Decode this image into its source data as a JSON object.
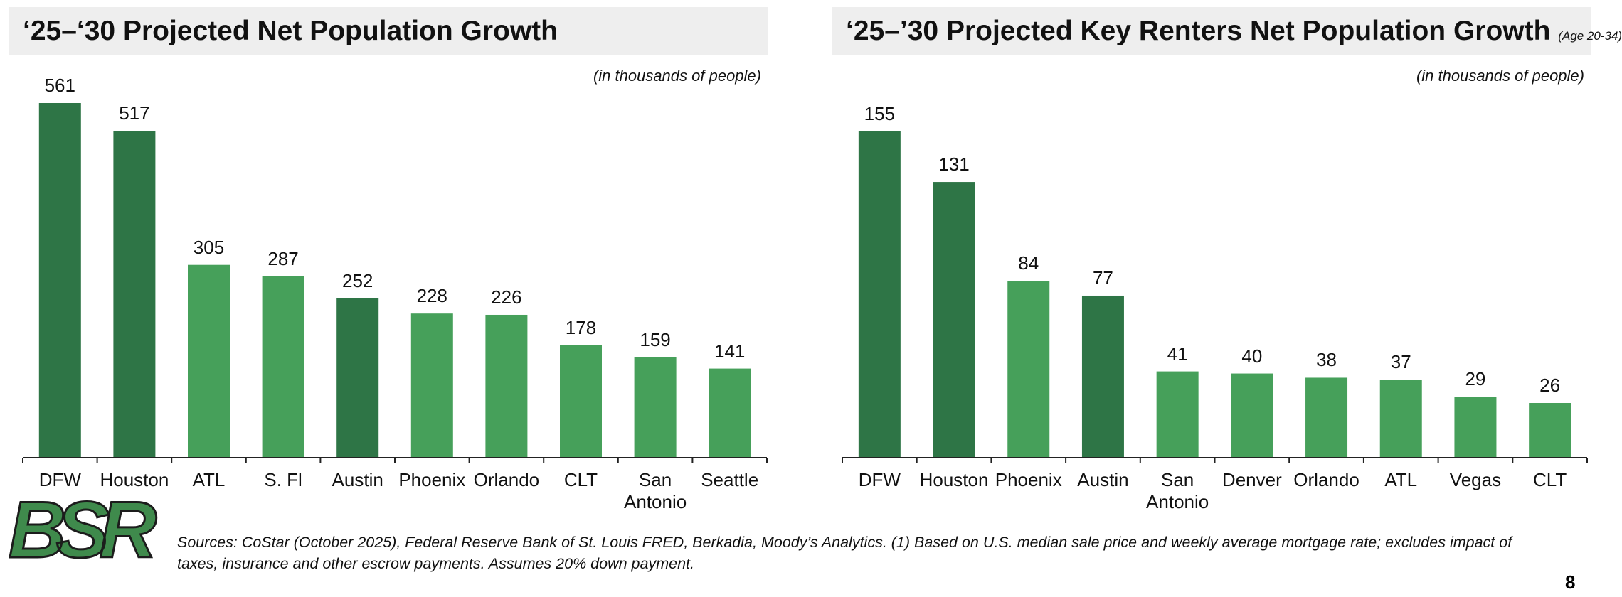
{
  "chart_data": [
    {
      "type": "bar",
      "title": "‘25–‘30 Projected Net Population Growth",
      "subtitle": "(in thousands of people)",
      "categories": [
        "DFW",
        "Houston",
        "ATL",
        "S. Fl",
        "Austin",
        "Phoenix",
        "Orlando",
        "CLT",
        "San Antonio",
        "Seattle"
      ],
      "values": [
        561,
        517,
        305,
        287,
        252,
        228,
        226,
        178,
        159,
        141
      ],
      "colors": [
        "#2e7546",
        "#2e7546",
        "#46a05a",
        "#46a05a",
        "#2e7546",
        "#46a05a",
        "#46a05a",
        "#46a05a",
        "#46a05a",
        "#46a05a"
      ]
    },
    {
      "type": "bar",
      "title": "‘25–’30 Projected Key Renters Net Population Growth",
      "title_note": "(Age 20-34)",
      "subtitle": "(in thousands of people)",
      "categories": [
        "DFW",
        "Houston",
        "Phoenix",
        "Austin",
        "San Antonio",
        "Denver",
        "Orlando",
        "ATL",
        "Vegas",
        "CLT"
      ],
      "values": [
        155,
        131,
        84,
        77,
        41,
        40,
        38,
        37,
        29,
        26
      ],
      "colors": [
        "#2e7546",
        "#2e7546",
        "#46a05a",
        "#2e7546",
        "#46a05a",
        "#46a05a",
        "#46a05a",
        "#46a05a",
        "#46a05a",
        "#46a05a"
      ]
    }
  ],
  "footer": {
    "logo": "BSR",
    "sources": "Sources: CoStar (October 2025), Federal Reserve Bank of St. Louis FRED, Berkadia, Moody’s Analytics. (1) Based on U.S. median sale price and weekly average mortgage rate; excludes impact of taxes, insurance and other escrow payments. Assumes 20% down payment.",
    "page_number": "8"
  }
}
